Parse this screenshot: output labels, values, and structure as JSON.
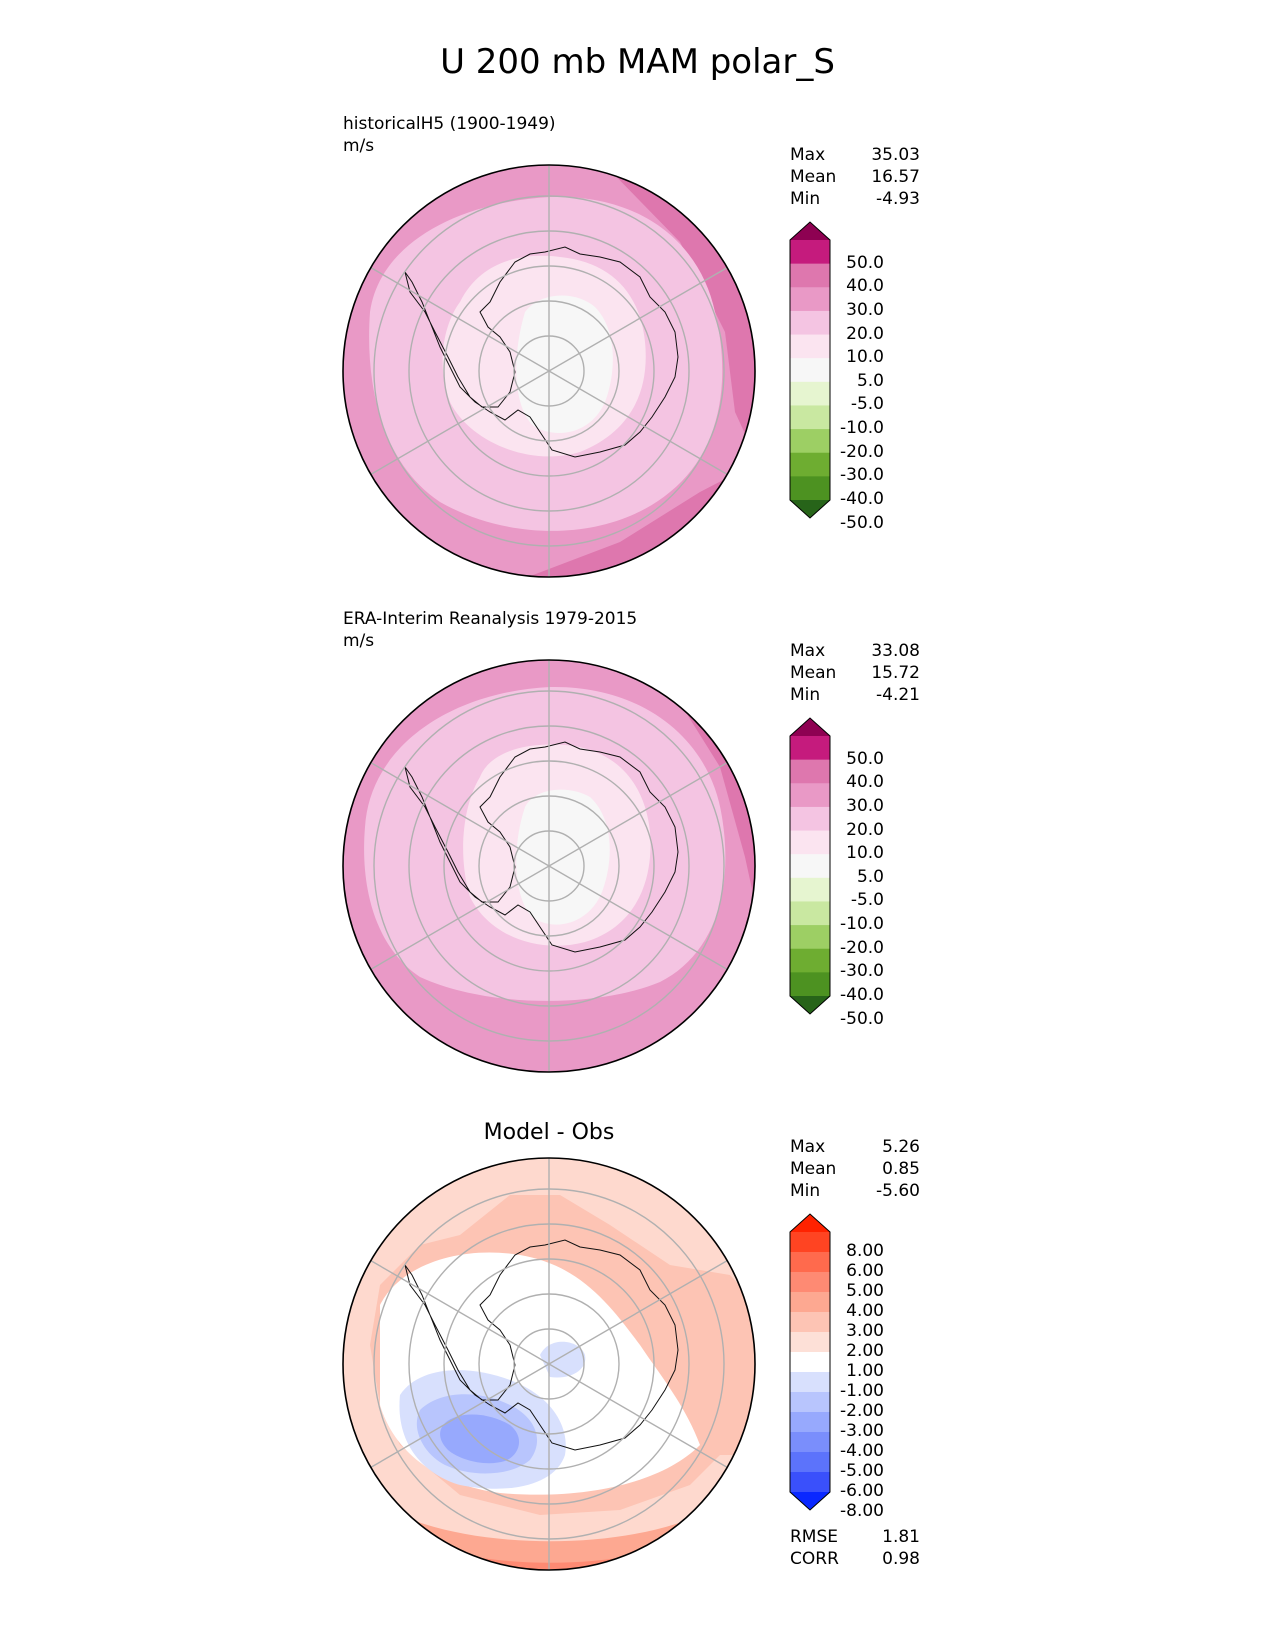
{
  "title": "U 200 mb MAM polar_S",
  "panels": [
    {
      "title_line1": "historicalH5 (1900-1949)",
      "title_line2": "m/s",
      "stats": [
        {
          "label": "Max",
          "value": "35.03"
        },
        {
          "label": "Mean",
          "value": "16.57"
        },
        {
          "label": "Min",
          "value": "-4.93"
        }
      ],
      "colorbar": {
        "labels": [
          "50.0",
          "40.0",
          "30.0",
          "20.0",
          "10.0",
          "5.0",
          "-5.0",
          "-10.0",
          "-20.0",
          "-30.0",
          "-40.0",
          "-50.0"
        ],
        "colors": [
          "#8e0152",
          "#c51b7d",
          "#de77ae",
          "#e999c6",
          "#f4c4e2",
          "#fbe4f0",
          "#f7f7f7",
          "#e6f5d0",
          "#c9e8a1",
          "#9dcf64",
          "#6ead31",
          "#4d9221",
          "#276419"
        ]
      }
    },
    {
      "title_line1": "ERA-Interim Reanalysis 1979-2015",
      "title_line2": "m/s",
      "stats": [
        {
          "label": "Max",
          "value": "33.08"
        },
        {
          "label": "Mean",
          "value": "15.72"
        },
        {
          "label": "Min",
          "value": "-4.21"
        }
      ],
      "colorbar": {
        "labels": [
          "50.0",
          "40.0",
          "30.0",
          "20.0",
          "10.0",
          "5.0",
          "-5.0",
          "-10.0",
          "-20.0",
          "-30.0",
          "-40.0",
          "-50.0"
        ],
        "colors": [
          "#8e0152",
          "#c51b7d",
          "#de77ae",
          "#e999c6",
          "#f4c4e2",
          "#fbe4f0",
          "#f7f7f7",
          "#e6f5d0",
          "#c9e8a1",
          "#9dcf64",
          "#6ead31",
          "#4d9221",
          "#276419"
        ]
      }
    },
    {
      "title_line1": "Model - Obs",
      "stats": [
        {
          "label": "Max",
          "value": "5.26"
        },
        {
          "label": "Mean",
          "value": "0.85"
        },
        {
          "label": "Min",
          "value": "-5.60"
        }
      ],
      "colorbar": {
        "labels": [
          "8.00",
          "6.00",
          "5.00",
          "4.00",
          "3.00",
          "2.00",
          "1.00",
          "-1.00",
          "-2.00",
          "-3.00",
          "-4.00",
          "-5.00",
          "-6.00",
          "-8.00"
        ],
        "colors": [
          "#ff2200",
          "#ff4422",
          "#ff6a4d",
          "#fe8a73",
          "#fda891",
          "#fdc4b4",
          "#fde0d7",
          "#ffffff",
          "#d8e0fd",
          "#b8c5fd",
          "#97a9fd",
          "#7a8efc",
          "#5c73fb",
          "#3a50fb",
          "#0a28ff"
        ]
      },
      "metrics": [
        {
          "label": "RMSE",
          "value": "1.81"
        },
        {
          "label": "CORR",
          "value": "0.98"
        }
      ]
    }
  ]
}
